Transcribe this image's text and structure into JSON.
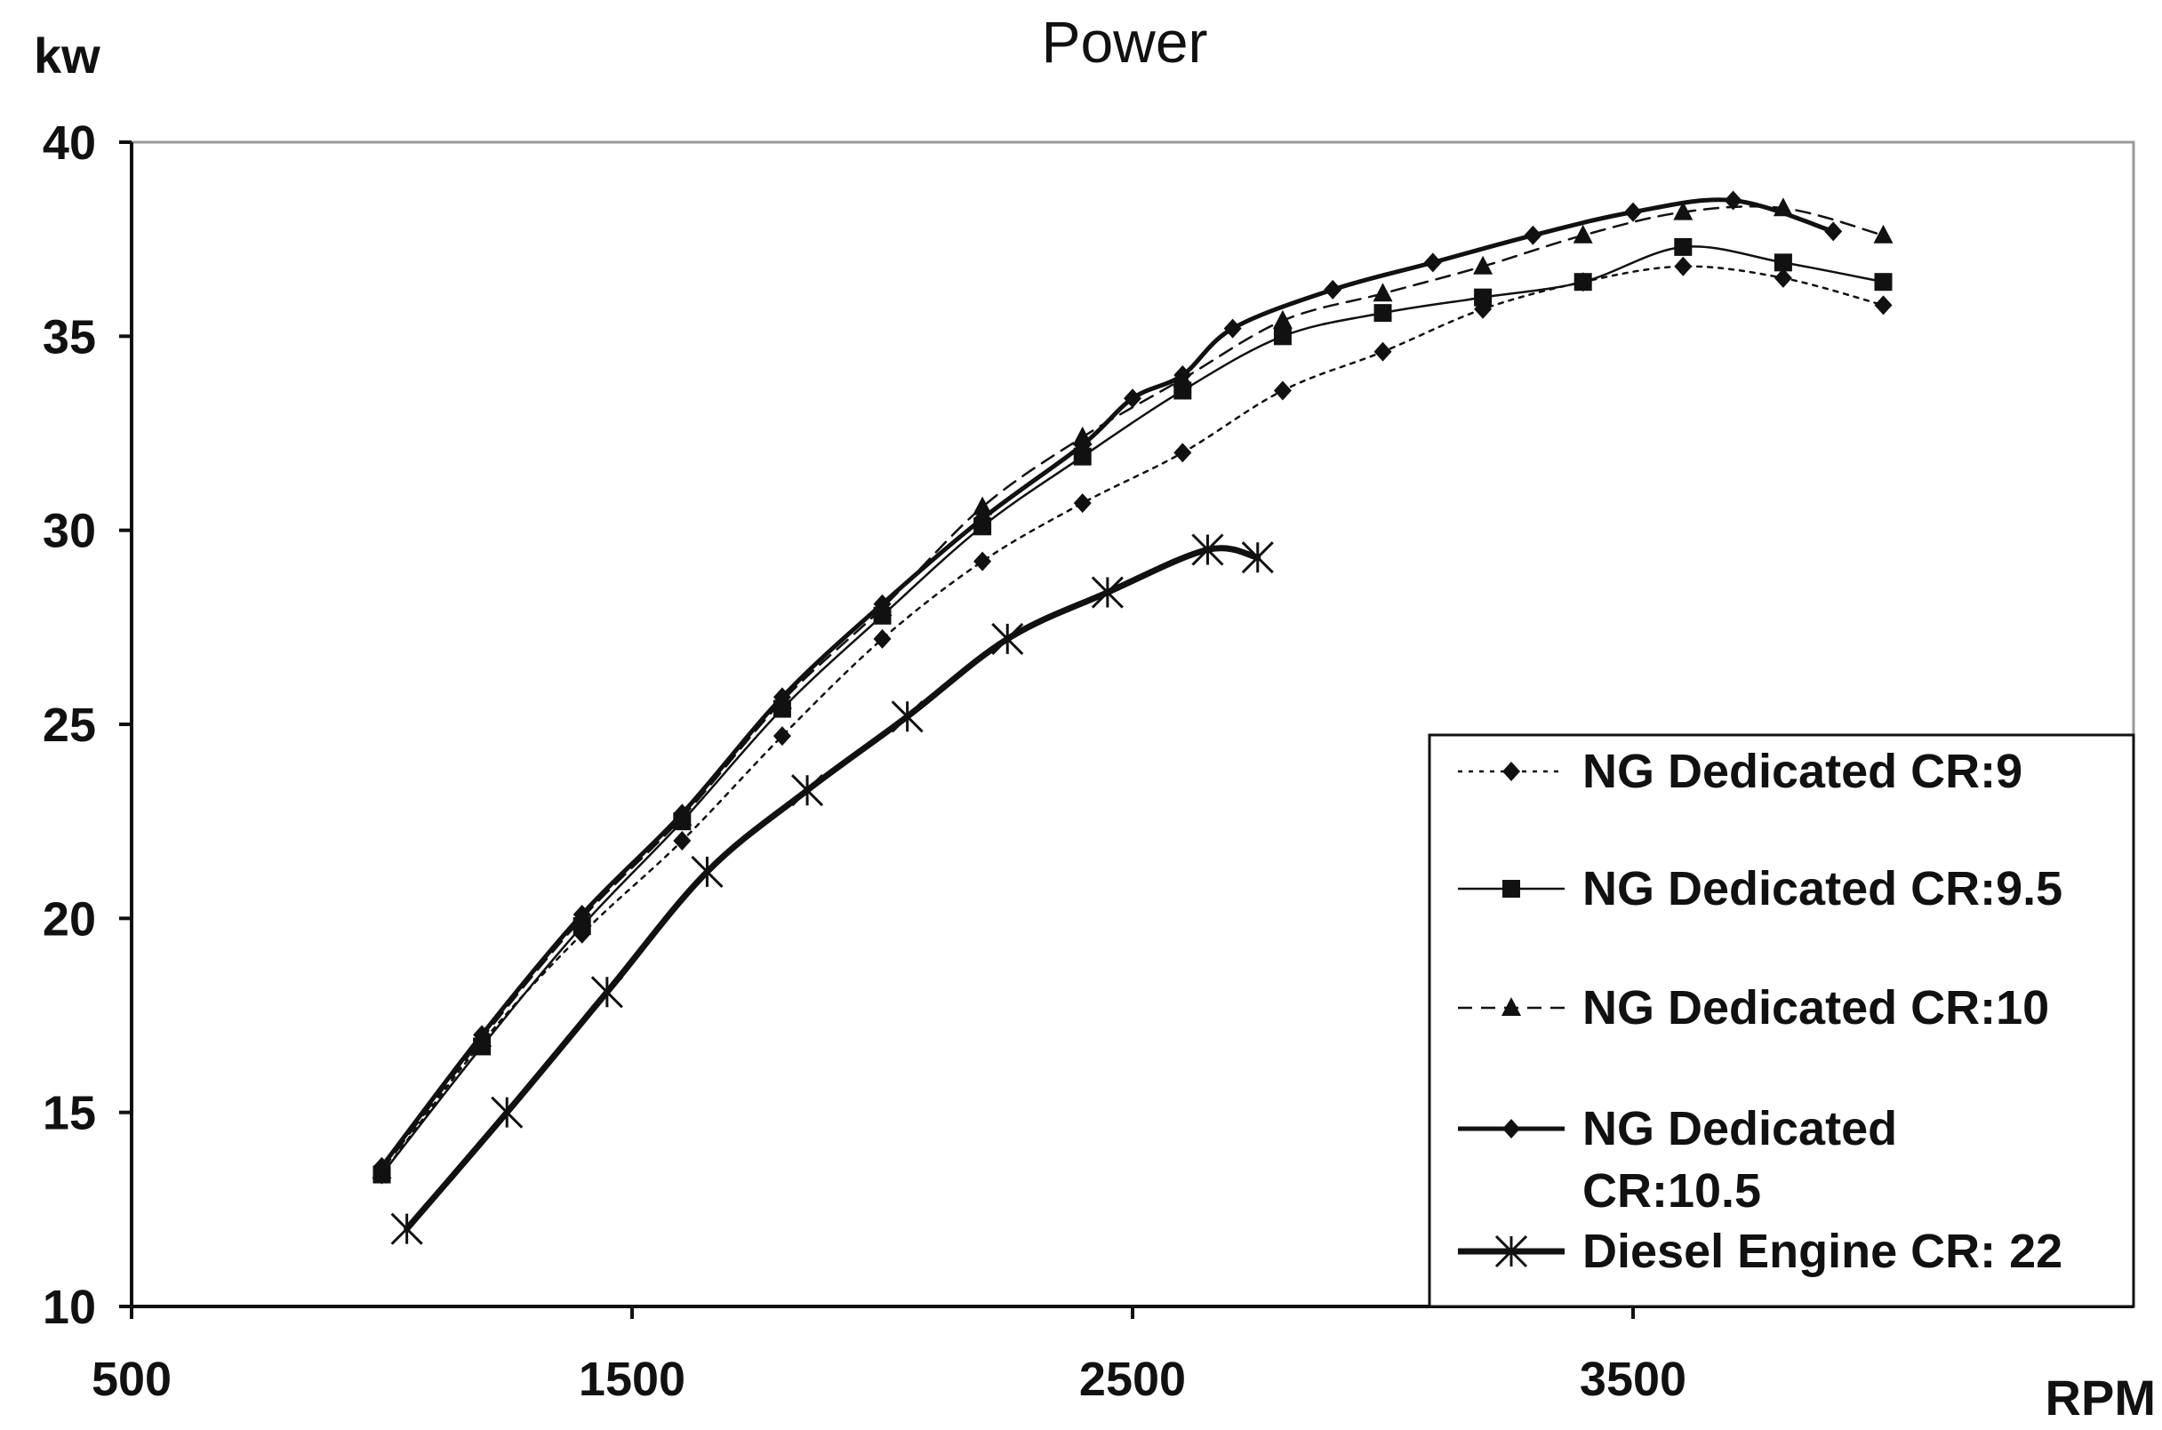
{
  "chart_data": {
    "type": "line",
    "title": "Power",
    "ylabel": "kw",
    "xlabel": "RPM",
    "xlim": [
      500,
      4500
    ],
    "ylim": [
      10,
      40
    ],
    "xticks": [
      500,
      1500,
      2500,
      3500
    ],
    "yticks": [
      10,
      15,
      20,
      25,
      30,
      35,
      40
    ],
    "grid": false,
    "legend_position": "bottom-right",
    "series": [
      {
        "name": "NG Dedicated CR:9",
        "marker": "diamond",
        "line": "dotted",
        "points": [
          [
            1000,
            13.4
          ],
          [
            1200,
            16.8
          ],
          [
            1400,
            19.6
          ],
          [
            1600,
            22.0
          ],
          [
            1800,
            24.7
          ],
          [
            2000,
            27.2
          ],
          [
            2200,
            29.2
          ],
          [
            2400,
            30.7
          ],
          [
            2600,
            32.0
          ],
          [
            2800,
            33.6
          ],
          [
            3000,
            34.6
          ],
          [
            3200,
            35.7
          ],
          [
            3400,
            36.4
          ],
          [
            3600,
            36.8
          ],
          [
            3800,
            36.5
          ],
          [
            4000,
            35.8
          ]
        ]
      },
      {
        "name": "NG Dedicated CR:9.5",
        "marker": "square",
        "line": "solid-thin",
        "points": [
          [
            1000,
            13.4
          ],
          [
            1200,
            16.7
          ],
          [
            1400,
            19.8
          ],
          [
            1600,
            22.5
          ],
          [
            1800,
            25.4
          ],
          [
            2000,
            27.8
          ],
          [
            2200,
            30.1
          ],
          [
            2400,
            31.9
          ],
          [
            2600,
            33.6
          ],
          [
            2800,
            35.0
          ],
          [
            3000,
            35.6
          ],
          [
            3200,
            36.0
          ],
          [
            3400,
            36.4
          ],
          [
            3600,
            37.3
          ],
          [
            3800,
            36.9
          ],
          [
            4000,
            36.4
          ]
        ]
      },
      {
        "name": "NG Dedicated CR:10",
        "marker": "triangle",
        "line": "dashed",
        "points": [
          [
            1000,
            13.5
          ],
          [
            1200,
            16.9
          ],
          [
            1400,
            20.0
          ],
          [
            1600,
            22.6
          ],
          [
            1800,
            25.6
          ],
          [
            2000,
            28.0
          ],
          [
            2200,
            30.6
          ],
          [
            2400,
            32.4
          ],
          [
            2600,
            33.9
          ],
          [
            2800,
            35.4
          ],
          [
            3000,
            36.1
          ],
          [
            3200,
            36.8
          ],
          [
            3400,
            37.6
          ],
          [
            3600,
            38.2
          ],
          [
            3800,
            38.3
          ],
          [
            4000,
            37.6
          ]
        ]
      },
      {
        "name": "NG Dedicated CR:10.5",
        "marker": "diamond",
        "line": "solid",
        "points": [
          [
            1000,
            13.6
          ],
          [
            1200,
            17.0
          ],
          [
            1400,
            20.1
          ],
          [
            1600,
            22.7
          ],
          [
            1800,
            25.7
          ],
          [
            2000,
            28.1
          ],
          [
            2200,
            30.3
          ],
          [
            2400,
            32.2
          ],
          [
            2500,
            33.4
          ],
          [
            2600,
            34.0
          ],
          [
            2700,
            35.2
          ],
          [
            2900,
            36.2
          ],
          [
            3100,
            36.9
          ],
          [
            3300,
            37.6
          ],
          [
            3500,
            38.2
          ],
          [
            3700,
            38.5
          ],
          [
            3900,
            37.7
          ]
        ]
      },
      {
        "name": "Diesel Engine CR: 22",
        "marker": "asterisk",
        "line": "solid-thick",
        "points": [
          [
            1050,
            12.0
          ],
          [
            1250,
            15.0
          ],
          [
            1450,
            18.1
          ],
          [
            1650,
            21.2
          ],
          [
            1850,
            23.3
          ],
          [
            2050,
            25.2
          ],
          [
            2250,
            27.2
          ],
          [
            2450,
            28.4
          ],
          [
            2650,
            29.5
          ],
          [
            2750,
            29.3
          ]
        ]
      }
    ]
  }
}
